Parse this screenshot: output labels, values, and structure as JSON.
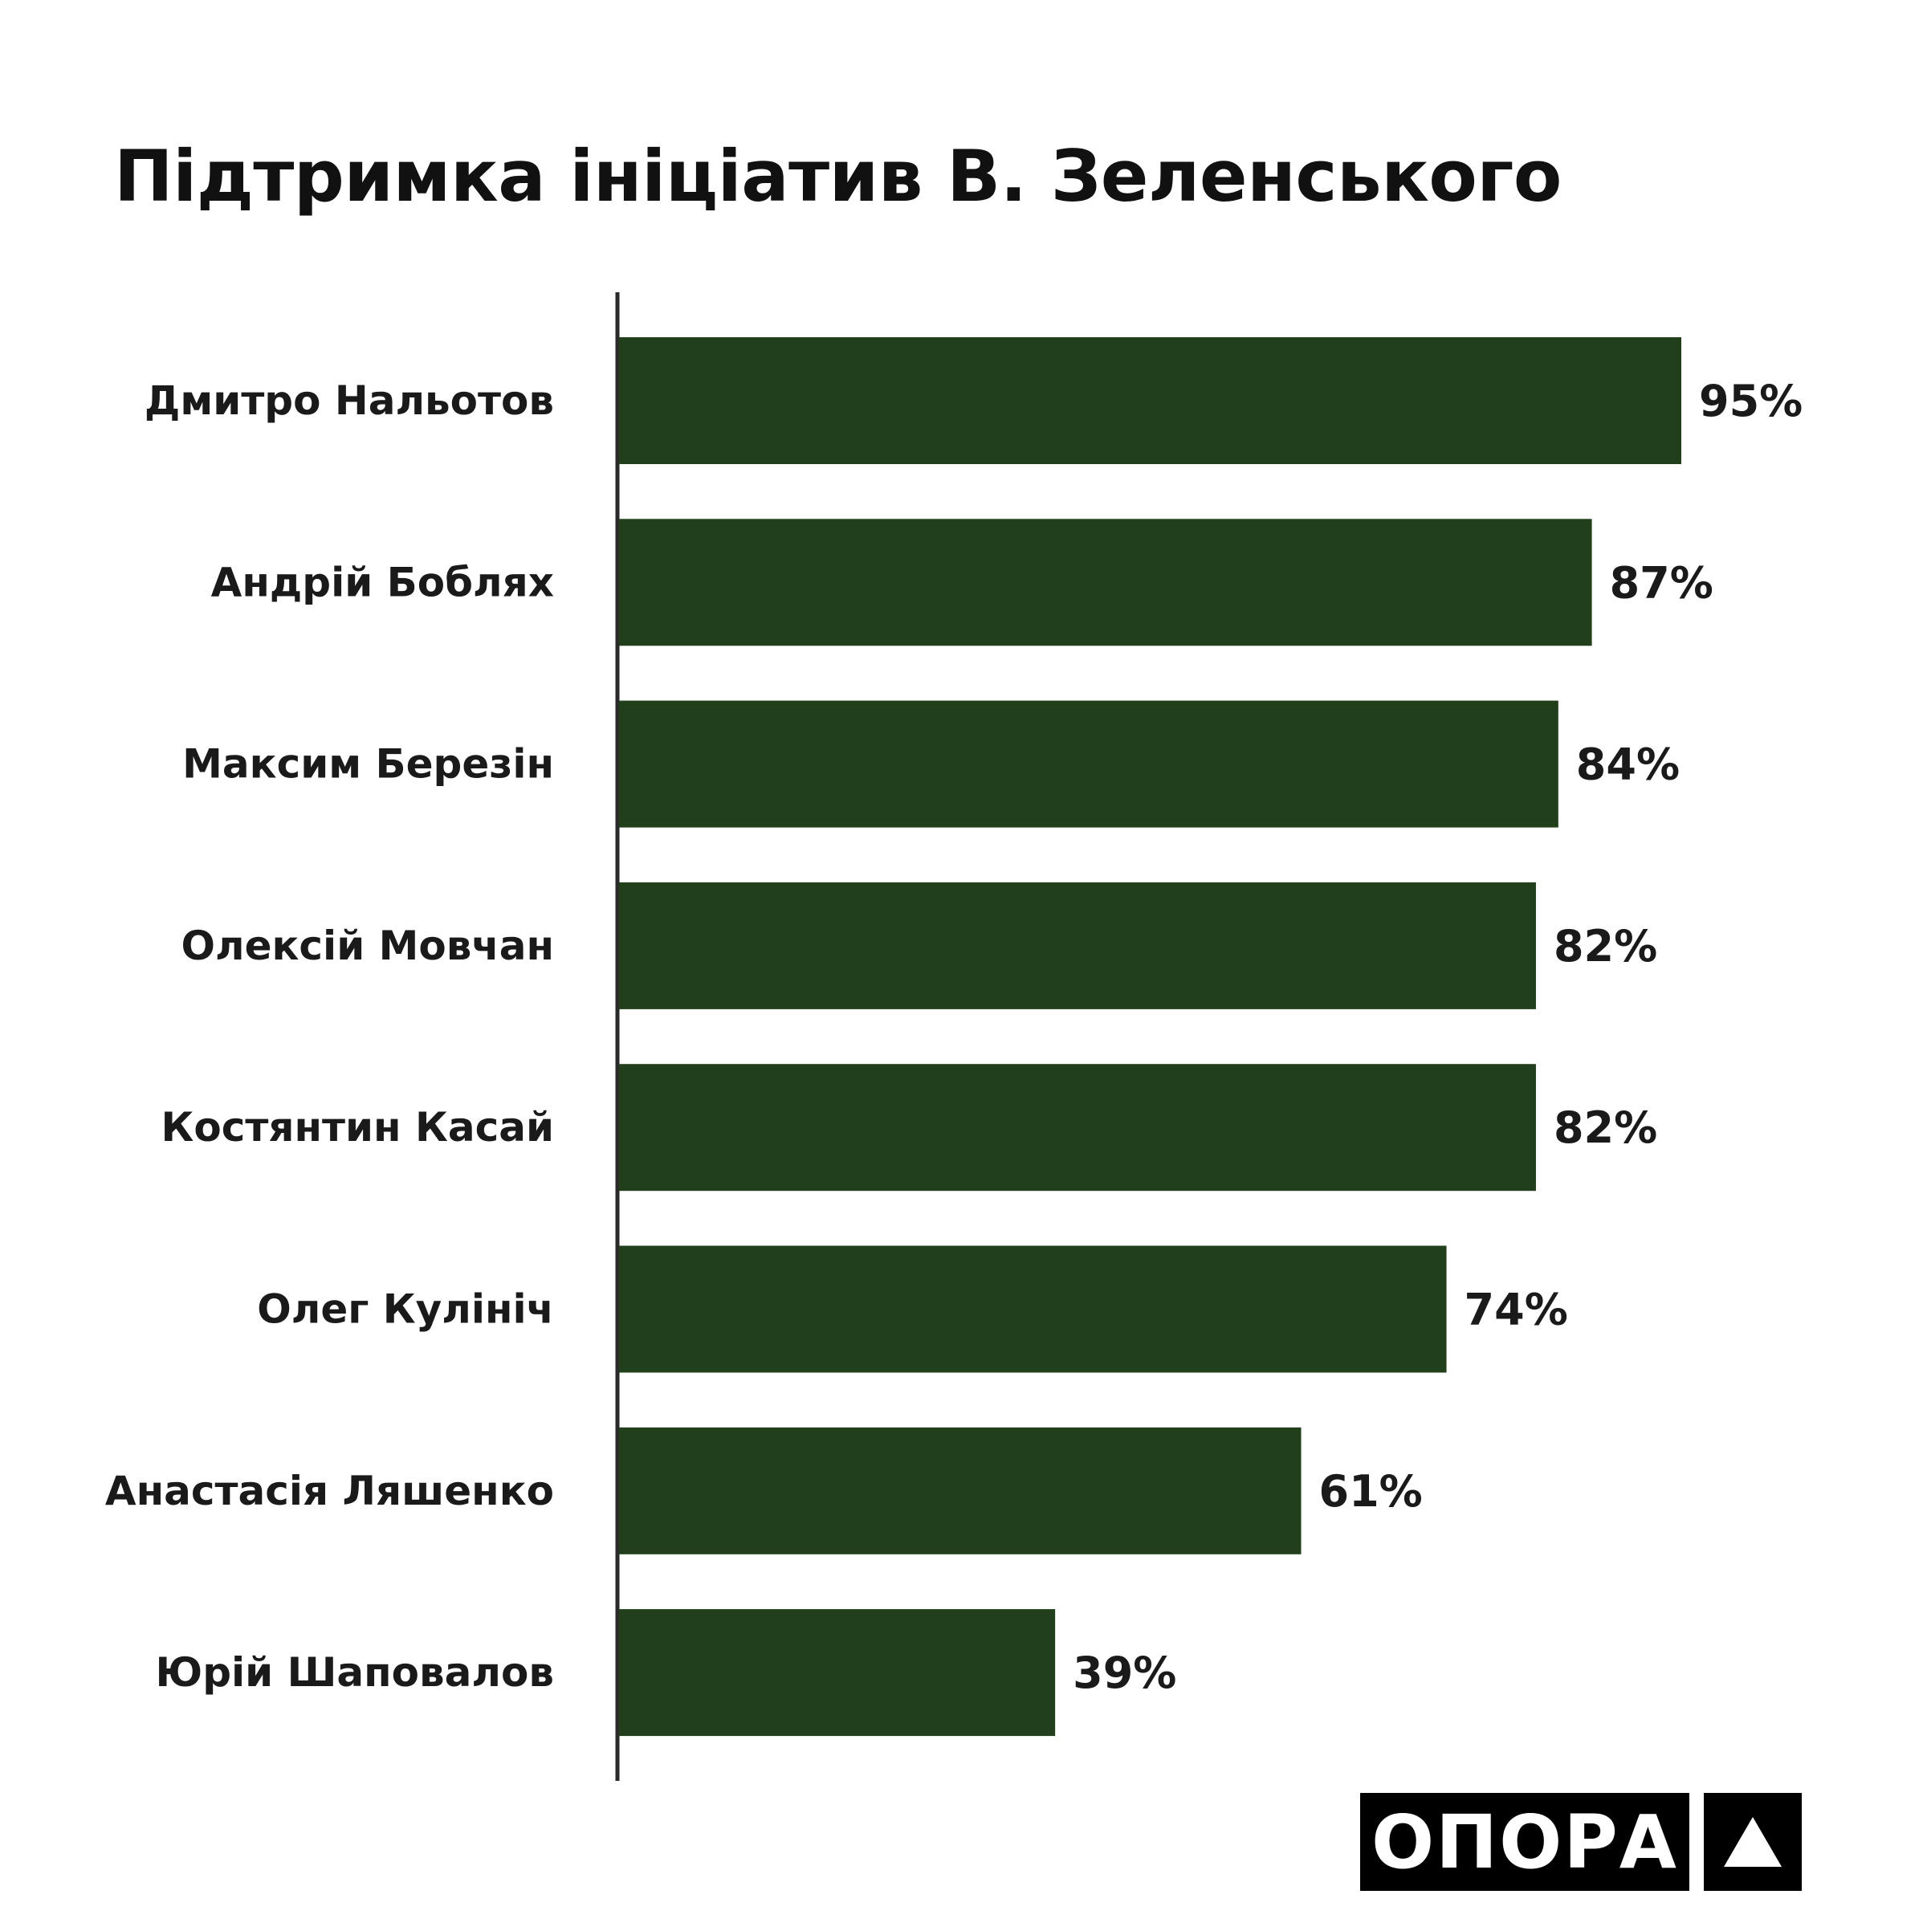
{
  "chart_data": {
    "type": "bar",
    "orientation": "horizontal",
    "title": "Підтримка ініціатив В. Зеленського",
    "categories": [
      "Дмитро Нальотов",
      "Андрій Боблях",
      "Максим Березін",
      "Олексій Мовчан",
      "Костянтин Касай",
      "Олег Кулініч",
      "Анастасія Ляшенко",
      "Юрій Шаповалов"
    ],
    "values": [
      95,
      87,
      84,
      82,
      82,
      74,
      61,
      39
    ],
    "value_labels": [
      "95%",
      "87%",
      "84%",
      "82%",
      "82%",
      "74%",
      "61%",
      "39%"
    ],
    "xlim": [
      0,
      100
    ],
    "unit": "%",
    "grid": false,
    "legend": false,
    "bar_color": "#213f1b"
  },
  "logo": {
    "text": "ОПОРА",
    "mark": "triangle-icon"
  }
}
